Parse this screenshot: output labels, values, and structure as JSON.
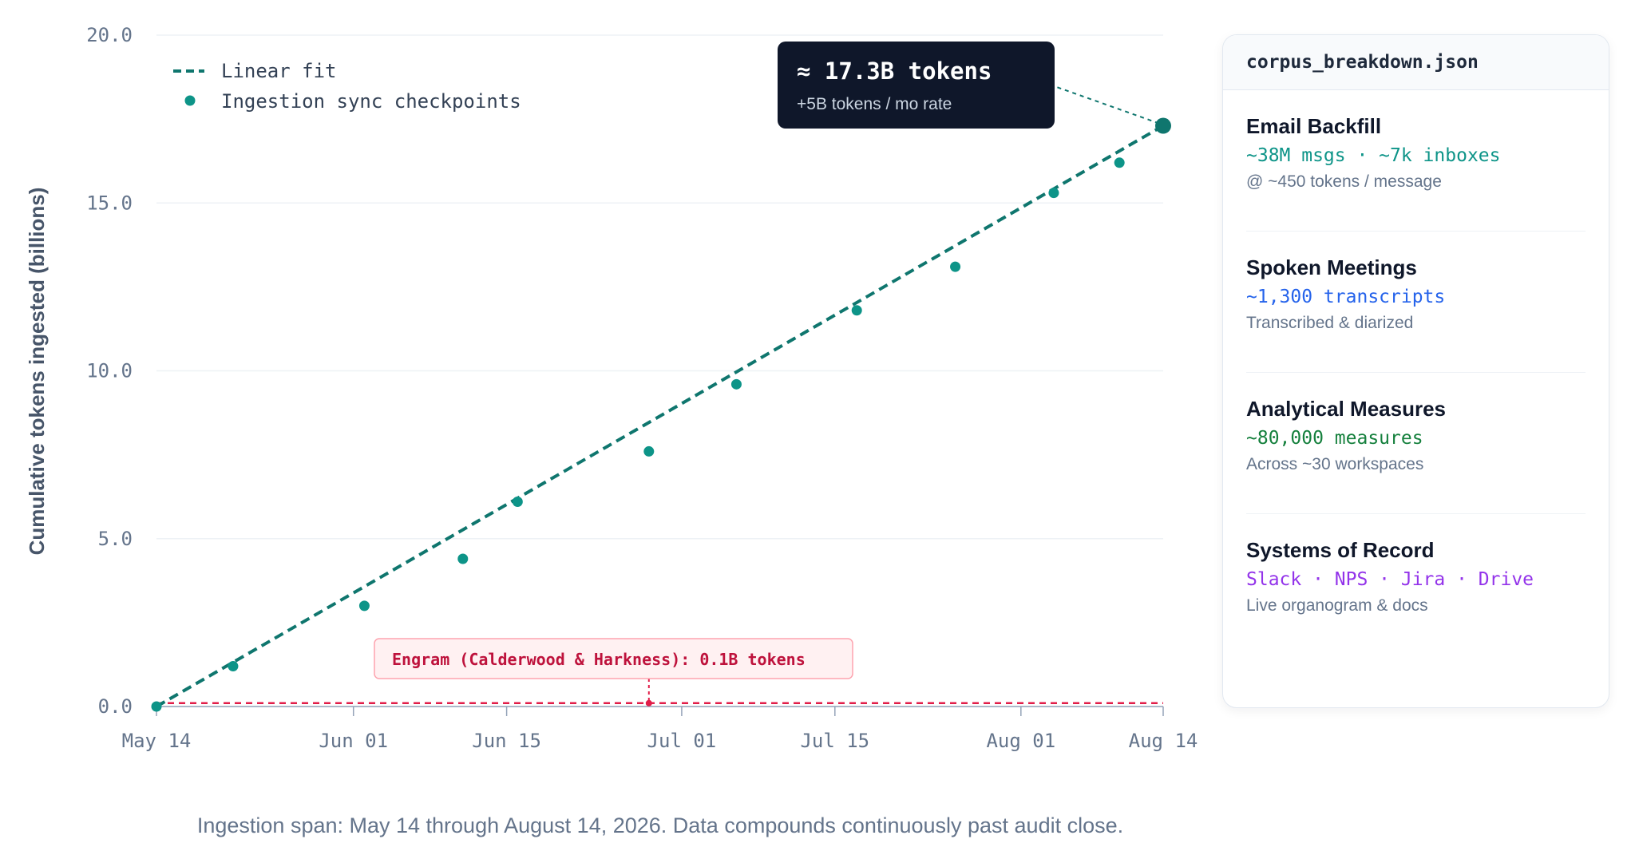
{
  "chart_data": {
    "type": "line",
    "ylabel": "Cumulative tokens ingested (billions)",
    "xlabel": "",
    "ylim": [
      0,
      20
    ],
    "yticks": [
      "0.0",
      "5.0",
      "10.0",
      "15.0",
      "20.0"
    ],
    "xlim": [
      "2026-05-14",
      "2026-08-14"
    ],
    "xticks": [
      {
        "date": "2026-05-14",
        "label": "May 14"
      },
      {
        "date": "2026-06-01",
        "label": "Jun 01"
      },
      {
        "date": "2026-06-15",
        "label": "Jun 15"
      },
      {
        "date": "2026-07-01",
        "label": "Jul 01"
      },
      {
        "date": "2026-07-15",
        "label": "Jul 15"
      },
      {
        "date": "2026-08-01",
        "label": "Aug 01"
      },
      {
        "date": "2026-08-14",
        "label": "Aug 14"
      }
    ],
    "grid": "horizontal",
    "legend_position": "top-left",
    "series": [
      {
        "name": "Linear fit",
        "style": "dashed",
        "color": "#0f766e",
        "points": [
          {
            "x": "2026-05-14",
            "y": 0.0
          },
          {
            "x": "2026-08-14",
            "y": 17.3
          }
        ]
      },
      {
        "name": "Ingestion sync checkpoints",
        "style": "markers",
        "color": "#0d9488",
        "points": [
          {
            "x": "2026-05-14",
            "y": 0.0
          },
          {
            "x": "2026-05-21",
            "y": 1.2
          },
          {
            "x": "2026-06-02",
            "y": 3.0
          },
          {
            "x": "2026-06-11",
            "y": 4.4
          },
          {
            "x": "2026-06-16",
            "y": 6.1
          },
          {
            "x": "2026-06-28",
            "y": 7.6
          },
          {
            "x": "2026-07-06",
            "y": 9.6
          },
          {
            "x": "2026-07-17",
            "y": 11.8
          },
          {
            "x": "2026-07-26",
            "y": 13.1
          },
          {
            "x": "2026-08-04",
            "y": 15.3
          },
          {
            "x": "2026-08-10",
            "y": 16.2
          },
          {
            "x": "2026-08-14",
            "y": 17.3
          }
        ]
      }
    ],
    "reference_line": {
      "y": 0.1,
      "color": "#e11d48",
      "style": "dashed"
    },
    "annotations": [
      {
        "id": "tooltip",
        "title": "≈ 17.3B tokens",
        "subtitle": "+5B tokens / mo rate",
        "target": {
          "x": "2026-08-14",
          "y": 17.3
        }
      },
      {
        "id": "engram",
        "text": "Engram (Calderwood & Harkness): 0.1B tokens",
        "target": {
          "x": "2026-06-28",
          "y": 0.1
        }
      }
    ],
    "caption": "Ingestion span: May 14 through August 14, 2026. Data compounds continuously past audit close."
  },
  "colors": {
    "fit": "#0f766e",
    "points": "#0d9488",
    "reference": "#e11d48",
    "tooltip_bg": "#0f172a"
  },
  "panel": {
    "title": "corpus_breakdown.json",
    "items": [
      {
        "title": "Email Backfill",
        "value": "~38M msgs · ~7k inboxes",
        "note": "@ ~450 tokens / message",
        "color": "#0d9488"
      },
      {
        "title": "Spoken Meetings",
        "value": "~1,300 transcripts",
        "note": "Transcribed & diarized",
        "color": "#2563eb"
      },
      {
        "title": "Analytical Measures",
        "value": "~80,000 measures",
        "note": "Across ~30 workspaces",
        "color": "#15803d"
      },
      {
        "title": "Systems of Record",
        "value": "Slack · NPS · Jira · Drive",
        "note": "Live organogram & docs",
        "color": "#9333ea"
      }
    ]
  }
}
